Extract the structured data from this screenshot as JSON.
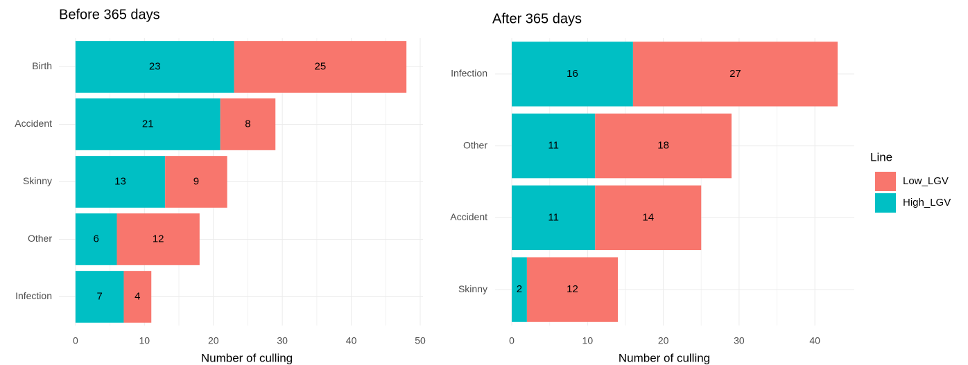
{
  "chart_data": [
    {
      "type": "barh-stacked",
      "title": "Before 365 days",
      "x_label": "Number of culling",
      "categories": [
        "Birth",
        "Accident",
        "Skinny",
        "Other",
        "Infection"
      ],
      "series": [
        {
          "color": "#f8766d",
          "values": [
            25,
            8,
            9,
            12,
            4
          ]
        },
        {
          "color": "#00bfc4",
          "values": [
            23,
            21,
            13,
            6,
            7
          ]
        }
      ],
      "xlim": [
        -2.4,
        50.4
      ],
      "xticks": [
        0,
        10,
        20,
        30,
        40,
        50
      ],
      "grid": true
    },
    {
      "type": "barh-stacked",
      "title": "After 365 days",
      "x_label": "Number of culling",
      "categories": [
        "Infection",
        "Other",
        "Accident",
        "Skinny"
      ],
      "series": [
        {
          "name": "Low_LGV",
          "color": "#f8766d",
          "values": [
            27,
            18,
            14,
            12
          ]
        },
        {
          "name": "High_LGV",
          "color": "#00bfc4",
          "values": [
            16,
            11,
            11,
            2
          ]
        }
      ],
      "xlim": [
        -2.2,
        45.2
      ],
      "xticks": [
        0,
        10,
        20,
        30,
        40
      ],
      "grid": true,
      "legend_title": "Line",
      "legend": "right"
    }
  ]
}
